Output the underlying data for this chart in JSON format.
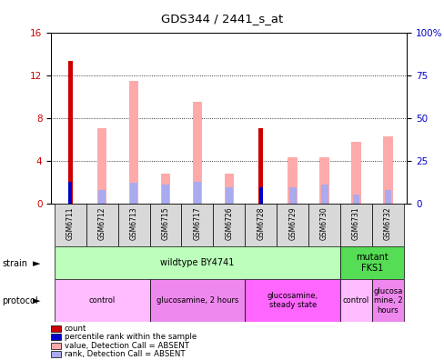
{
  "title": "GDS344 / 2441_s_at",
  "samples": [
    "GSM6711",
    "GSM6712",
    "GSM6713",
    "GSM6715",
    "GSM6717",
    "GSM6726",
    "GSM6728",
    "GSM6729",
    "GSM6730",
    "GSM6731",
    "GSM6732"
  ],
  "count_values": [
    13.3,
    0,
    0,
    0,
    0,
    0,
    7.0,
    0,
    0,
    0,
    0
  ],
  "rank_values_pct": [
    12.5,
    0,
    0,
    0,
    0,
    0,
    9.5,
    0,
    0,
    0,
    0
  ],
  "absent_value": [
    0,
    7.0,
    11.5,
    2.8,
    9.5,
    2.8,
    0,
    4.3,
    4.3,
    5.8,
    6.3
  ],
  "absent_rank_pct": [
    0,
    8.0,
    12.0,
    11.0,
    12.5,
    9.5,
    0,
    9.5,
    11.0,
    5.0,
    8.0
  ],
  "ylim_left": [
    0,
    16
  ],
  "ylim_right": [
    0,
    100
  ],
  "yticks_left": [
    0,
    4,
    8,
    12,
    16
  ],
  "ytick_labels_left": [
    "0",
    "4",
    "8",
    "12",
    "16"
  ],
  "ytick_labels_right": [
    "0",
    "25",
    "50",
    "75",
    "100%"
  ],
  "yticks_right": [
    0,
    25,
    50,
    75,
    100
  ],
  "strain_groups": [
    {
      "label": "wildtype BY4741",
      "start": 0,
      "end": 9,
      "color": "#bbffbb"
    },
    {
      "label": "mutant\nFKS1",
      "start": 9,
      "end": 11,
      "color": "#55dd55"
    }
  ],
  "protocol_groups": [
    {
      "label": "control",
      "start": 0,
      "end": 3,
      "color": "#ffbbff"
    },
    {
      "label": "glucosamine, 2 hours",
      "start": 3,
      "end": 6,
      "color": "#ee88ee"
    },
    {
      "label": "glucosamine,\nsteady state",
      "start": 6,
      "end": 9,
      "color": "#ff66ff"
    },
    {
      "label": "control",
      "start": 9,
      "end": 10,
      "color": "#ffbbff"
    },
    {
      "label": "glucosa\nmine, 2\nhours",
      "start": 10,
      "end": 11,
      "color": "#ee88ee"
    }
  ],
  "bar_width": 0.25,
  "count_color": "#cc0000",
  "rank_color": "#0000cc",
  "absent_val_color": "#ffaaaa",
  "absent_rank_color": "#aaaaee",
  "tick_label_color_left": "#cc0000",
  "tick_label_color_right": "#0000cc"
}
